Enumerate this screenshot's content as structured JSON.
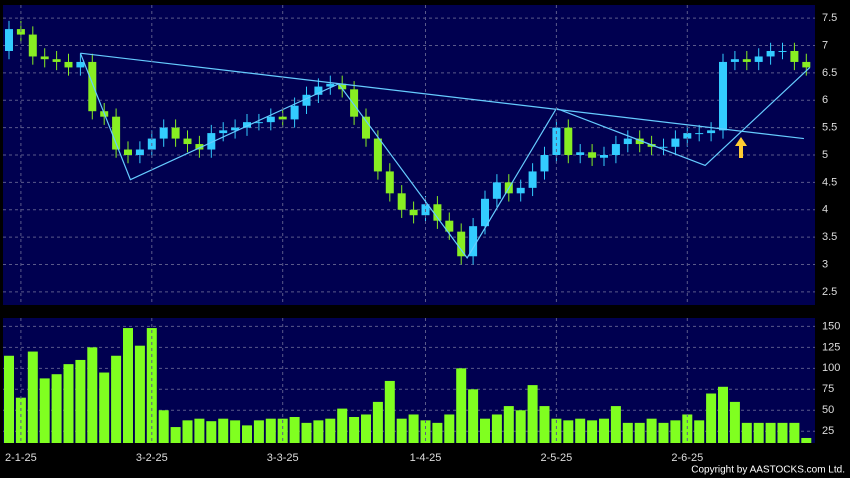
{
  "chart_data": [
    {
      "type": "candlestick",
      "up_color": "#33ccff",
      "down_color": "#88ee22",
      "line_color": "#66ccff",
      "open": [
        6.9,
        7.3,
        7.2,
        6.8,
        6.75,
        6.7,
        6.6,
        6.7,
        5.8,
        5.7,
        5.1,
        5.0,
        5.1,
        5.3,
        5.5,
        5.3,
        5.2,
        5.1,
        5.4,
        5.45,
        5.5,
        5.6,
        5.6,
        5.7,
        5.65,
        5.9,
        6.1,
        6.25,
        6.3,
        6.2,
        5.7,
        5.3,
        4.7,
        4.3,
        4.0,
        3.9,
        4.1,
        3.8,
        3.6,
        3.15,
        3.7,
        4.2,
        4.5,
        4.3,
        4.4,
        4.7,
        5.0,
        5.5,
        5.0,
        5.05,
        4.95,
        5.0,
        5.2,
        5.3,
        5.2,
        5.15,
        5.15,
        5.3,
        5.4,
        5.4,
        5.45,
        6.7,
        6.75,
        6.7,
        6.8,
        6.9,
        6.9,
        6.7
      ],
      "high": [
        7.45,
        7.45,
        7.35,
        6.95,
        6.9,
        6.85,
        6.85,
        6.85,
        5.95,
        5.85,
        5.25,
        5.25,
        5.45,
        5.65,
        5.65,
        5.45,
        5.35,
        5.55,
        5.6,
        5.65,
        5.75,
        5.75,
        5.85,
        5.85,
        6.05,
        6.25,
        6.4,
        6.45,
        6.45,
        6.35,
        5.85,
        5.45,
        4.85,
        4.45,
        4.15,
        4.25,
        4.25,
        3.95,
        3.75,
        3.85,
        4.35,
        4.65,
        4.65,
        4.55,
        4.85,
        5.15,
        5.65,
        5.65,
        5.2,
        5.2,
        5.15,
        5.35,
        5.45,
        5.45,
        5.35,
        5.3,
        5.45,
        5.55,
        5.55,
        5.6,
        6.85,
        6.9,
        6.9,
        6.95,
        7.05,
        7.05,
        7.05,
        6.85
      ],
      "low": [
        6.75,
        7.05,
        6.65,
        6.6,
        6.55,
        6.45,
        6.45,
        5.65,
        5.55,
        4.95,
        4.85,
        4.85,
        4.95,
        5.15,
        5.15,
        5.05,
        4.95,
        4.95,
        5.25,
        5.3,
        5.35,
        5.45,
        5.45,
        5.5,
        5.5,
        5.75,
        5.95,
        6.1,
        6.05,
        5.55,
        5.15,
        4.55,
        4.15,
        3.85,
        3.75,
        3.75,
        3.65,
        3.45,
        3.0,
        3.0,
        3.55,
        4.05,
        4.15,
        4.15,
        4.25,
        4.55,
        4.85,
        4.85,
        4.85,
        4.8,
        4.8,
        4.85,
        5.05,
        5.05,
        5.0,
        5.0,
        5.0,
        5.15,
        5.25,
        5.25,
        5.3,
        6.55,
        6.55,
        6.55,
        6.65,
        6.75,
        6.55,
        6.45
      ],
      "close": [
        7.3,
        7.2,
        6.8,
        6.75,
        6.7,
        6.6,
        6.7,
        5.8,
        5.7,
        5.1,
        5.0,
        5.1,
        5.3,
        5.5,
        5.3,
        5.2,
        5.1,
        5.4,
        5.45,
        5.5,
        5.6,
        5.6,
        5.7,
        5.65,
        5.9,
        6.1,
        6.25,
        6.3,
        6.2,
        5.7,
        5.3,
        4.7,
        4.3,
        4.0,
        3.9,
        4.1,
        3.8,
        3.6,
        3.15,
        3.7,
        4.2,
        4.5,
        4.3,
        4.4,
        4.7,
        5.0,
        5.5,
        5.0,
        5.05,
        4.95,
        5.0,
        5.2,
        5.3,
        5.2,
        5.15,
        5.15,
        5.3,
        5.4,
        5.4,
        5.45,
        6.7,
        6.75,
        6.7,
        6.8,
        6.9,
        6.9,
        6.7,
        6.6
      ],
      "trendlines": [
        [
          [
            6,
            6.86
          ],
          [
            66.8,
            5.3
          ]
        ],
        [
          [
            6,
            6.86
          ],
          [
            10.2,
            4.55
          ],
          [
            27.7,
            6.3
          ],
          [
            38.5,
            3.12
          ],
          [
            46,
            5.85
          ],
          [
            58.5,
            4.81
          ],
          [
            67.3,
            6.6
          ]
        ]
      ],
      "ylim": [
        2.26,
        7.74
      ],
      "yticks": [
        2.5,
        3,
        3.5,
        4,
        4.5,
        5,
        5.5,
        6,
        6.5,
        7,
        7.5
      ],
      "grid": true
    },
    {
      "type": "bar",
      "color": "#80ff20",
      "categories": [
        null,
        "2-1-25",
        null,
        null,
        null,
        null,
        null,
        null,
        null,
        null,
        null,
        null,
        "3-2-25",
        null,
        null,
        null,
        null,
        null,
        null,
        null,
        null,
        null,
        null,
        "3-3-25",
        null,
        null,
        null,
        null,
        null,
        null,
        null,
        null,
        null,
        null,
        null,
        "1-4-25",
        null,
        null,
        null,
        null,
        null,
        null,
        null,
        null,
        null,
        null,
        "2-5-25",
        null,
        null,
        null,
        null,
        null,
        null,
        null,
        null,
        null,
        null,
        "2-6-25",
        null,
        null,
        null,
        null,
        null,
        null,
        null,
        null,
        null,
        null
      ],
      "values": [
        115,
        65,
        120,
        88,
        93,
        105,
        110,
        125,
        95,
        115,
        148,
        127,
        148,
        50,
        30,
        38,
        40,
        37,
        40,
        38,
        32,
        38,
        40,
        40,
        42,
        35,
        38,
        40,
        52,
        42,
        45,
        60,
        85,
        40,
        45,
        38,
        35,
        45,
        100,
        75,
        40,
        45,
        55,
        50,
        80,
        55,
        40,
        38,
        40,
        38,
        40,
        55,
        35,
        35,
        40,
        35,
        38,
        45,
        38,
        70,
        78,
        60,
        35,
        35,
        35,
        35,
        35,
        17
      ],
      "ylim": [
        11,
        160
      ],
      "yticks": [
        25,
        50,
        75,
        100,
        125,
        150
      ],
      "grid": true
    }
  ],
  "footer": "Copyright by AASTOCKS.com Ltd."
}
